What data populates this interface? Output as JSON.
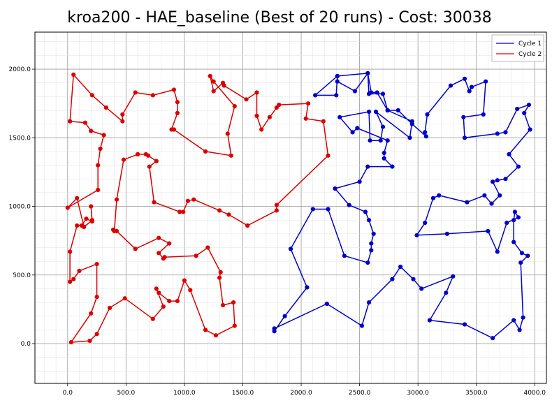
{
  "chart_data": {
    "type": "line",
    "title": "kroa200 - HAE_baseline (Best of 20 runs) - Cost: 30038",
    "xlabel": "",
    "ylabel": "",
    "xlim": [
      -280,
      4100
    ],
    "ylim": [
      -290,
      2270
    ],
    "x_ticks": [
      0,
      500,
      1000,
      1500,
      2000,
      2500,
      3000,
      3500,
      4000
    ],
    "x_tick_labels": [
      "0.0",
      "500.0",
      "1000.0",
      "1500.0",
      "2000.0",
      "2500.0",
      "3000.0",
      "3500.0",
      "4000.0"
    ],
    "y_ticks": [
      0,
      500,
      1000,
      1500,
      2000
    ],
    "y_tick_labels": [
      "0.0",
      "500.0",
      "1000.0",
      "1500.0",
      "2000.0"
    ],
    "grid": true,
    "minor_grid": true,
    "legend_position": "top-right",
    "series": [
      {
        "name": "Cycle 1",
        "color": "#0000cc",
        "closed": true,
        "points": [
          [
            2120,
            1810
          ],
          [
            2310,
            1950
          ],
          [
            2310,
            1910
          ],
          [
            2460,
            1840
          ],
          [
            2570,
            1970
          ],
          [
            2580,
            1820
          ],
          [
            2700,
            1820
          ],
          [
            2740,
            1700
          ],
          [
            2950,
            1620
          ],
          [
            2930,
            1500
          ],
          [
            2640,
            1690
          ],
          [
            2700,
            1580
          ],
          [
            2680,
            1480
          ],
          [
            2590,
            1480
          ],
          [
            2580,
            1690
          ],
          [
            2330,
            1650
          ],
          [
            2440,
            1540
          ],
          [
            2480,
            1570
          ],
          [
            2740,
            1480
          ],
          [
            2710,
            1390
          ],
          [
            2710,
            1350
          ],
          [
            2780,
            1290
          ],
          [
            2570,
            1290
          ],
          [
            2500,
            1180
          ],
          [
            2290,
            1130
          ],
          [
            2410,
            1010
          ],
          [
            2550,
            960
          ],
          [
            2580,
            900
          ],
          [
            2620,
            800
          ],
          [
            2600,
            730
          ],
          [
            2600,
            680
          ],
          [
            2570,
            590
          ],
          [
            2370,
            640
          ],
          [
            2230,
            980
          ],
          [
            2100,
            980
          ],
          [
            1910,
            690
          ],
          [
            2050,
            410
          ],
          [
            1860,
            200
          ],
          [
            1770,
            90
          ],
          [
            1770,
            110
          ],
          [
            2220,
            290
          ],
          [
            2520,
            130
          ],
          [
            2580,
            300
          ],
          [
            2780,
            470
          ],
          [
            2850,
            560
          ],
          [
            2960,
            470
          ],
          [
            3030,
            400
          ],
          [
            3300,
            490
          ],
          [
            3240,
            370
          ],
          [
            3100,
            170
          ],
          [
            3400,
            140
          ],
          [
            3640,
            40
          ],
          [
            3820,
            170
          ],
          [
            3870,
            100
          ],
          [
            3900,
            190
          ],
          [
            3880,
            590
          ],
          [
            3940,
            640
          ],
          [
            3890,
            660
          ],
          [
            3820,
            740
          ],
          [
            3820,
            900
          ],
          [
            3830,
            960
          ],
          [
            3860,
            920
          ],
          [
            3760,
            880
          ],
          [
            3680,
            670
          ],
          [
            3600,
            820
          ],
          [
            3250,
            800
          ],
          [
            2990,
            790
          ],
          [
            3060,
            880
          ],
          [
            3130,
            1060
          ],
          [
            3180,
            1080
          ],
          [
            3420,
            1030
          ],
          [
            3570,
            1080
          ],
          [
            3630,
            1020
          ],
          [
            3700,
            1080
          ],
          [
            3640,
            1180
          ],
          [
            3680,
            1190
          ],
          [
            3750,
            1200
          ],
          [
            3860,
            1290
          ],
          [
            3780,
            1380
          ],
          [
            3960,
            1560
          ],
          [
            3910,
            1680
          ],
          [
            3950,
            1740
          ],
          [
            3850,
            1710
          ],
          [
            3750,
            1540
          ],
          [
            3680,
            1530
          ],
          [
            3400,
            1500
          ],
          [
            3390,
            1650
          ],
          [
            3560,
            1670
          ],
          [
            3580,
            1910
          ],
          [
            3460,
            1870
          ],
          [
            3440,
            1840
          ],
          [
            3400,
            1930
          ],
          [
            3280,
            1880
          ],
          [
            3080,
            1670
          ],
          [
            3060,
            1540
          ],
          [
            3070,
            1510
          ],
          [
            2950,
            1600
          ],
          [
            2830,
            1700
          ],
          [
            2740,
            1700
          ],
          [
            2650,
            1830
          ],
          [
            2600,
            1830
          ],
          [
            2570,
            1970
          ],
          [
            2310,
            1950
          ],
          [
            2300,
            1810
          ]
        ]
      },
      {
        "name": "Cycle 2",
        "color": "#dd0000",
        "closed": false,
        "points": [
          [
            20,
            1620
          ],
          [
            50,
            1960
          ],
          [
            210,
            1810
          ],
          [
            330,
            1720
          ],
          [
            470,
            1620
          ],
          [
            470,
            1670
          ],
          [
            580,
            1830
          ],
          [
            730,
            1810
          ],
          [
            910,
            1850
          ],
          [
            940,
            1760
          ],
          [
            940,
            1680
          ],
          [
            890,
            1560
          ],
          [
            910,
            1560
          ],
          [
            1180,
            1400
          ],
          [
            1400,
            1370
          ],
          [
            1370,
            1530
          ],
          [
            1430,
            1730
          ],
          [
            1250,
            1910
          ],
          [
            1220,
            1950
          ],
          [
            1250,
            1840
          ],
          [
            1330,
            1900
          ],
          [
            1340,
            1880
          ],
          [
            1530,
            1780
          ],
          [
            1620,
            1830
          ],
          [
            1620,
            1660
          ],
          [
            1660,
            1560
          ],
          [
            1730,
            1650
          ],
          [
            1790,
            1720
          ],
          [
            1810,
            1740
          ],
          [
            2060,
            1750
          ],
          [
            2040,
            1640
          ],
          [
            2190,
            1620
          ],
          [
            2230,
            1370
          ],
          [
            1790,
            1010
          ],
          [
            1790,
            970
          ],
          [
            1540,
            860
          ],
          [
            1380,
            940
          ],
          [
            1300,
            970
          ],
          [
            1080,
            1050
          ],
          [
            1030,
            1040
          ],
          [
            990,
            960
          ],
          [
            960,
            960
          ],
          [
            740,
            1030
          ],
          [
            700,
            1290
          ],
          [
            760,
            1330
          ],
          [
            690,
            1370
          ],
          [
            670,
            1380
          ],
          [
            600,
            1380
          ],
          [
            480,
            1340
          ],
          [
            420,
            1050
          ],
          [
            400,
            820
          ],
          [
            390,
            830
          ],
          [
            420,
            820
          ],
          [
            580,
            690
          ],
          [
            780,
            770
          ],
          [
            870,
            730
          ],
          [
            780,
            660
          ],
          [
            820,
            620
          ],
          [
            830,
            630
          ],
          [
            1100,
            640
          ],
          [
            1200,
            700
          ],
          [
            1310,
            520
          ],
          [
            1300,
            480
          ],
          [
            1330,
            280
          ],
          [
            1420,
            300
          ],
          [
            1430,
            130
          ],
          [
            1270,
            60
          ],
          [
            1180,
            100
          ],
          [
            1050,
            390
          ],
          [
            1000,
            460
          ],
          [
            940,
            310
          ],
          [
            870,
            310
          ],
          [
            780,
            370
          ],
          [
            760,
            400
          ],
          [
            820,
            270
          ],
          [
            730,
            180
          ],
          [
            490,
            330
          ],
          [
            360,
            260
          ],
          [
            250,
            70
          ],
          [
            190,
            20
          ],
          [
            30,
            10
          ],
          [
            200,
            220
          ],
          [
            250,
            340
          ],
          [
            250,
            580
          ],
          [
            100,
            530
          ],
          [
            50,
            470
          ],
          [
            20,
            450
          ],
          [
            20,
            670
          ],
          [
            80,
            860
          ],
          [
            120,
            860
          ],
          [
            160,
            910
          ],
          [
            210,
            890
          ],
          [
            200,
            1000
          ],
          [
            210,
            900
          ],
          [
            140,
            850
          ],
          [
            80,
            1060
          ],
          [
            0,
            990
          ],
          [
            260,
            1120
          ],
          [
            260,
            1300
          ],
          [
            280,
            1420
          ],
          [
            310,
            1520
          ],
          [
            200,
            1550
          ],
          [
            150,
            1610
          ],
          [
            20,
            1620
          ]
        ]
      }
    ]
  }
}
